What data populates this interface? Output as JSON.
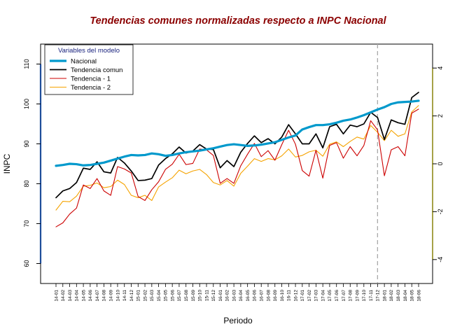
{
  "chart_data": {
    "type": "line",
    "title": "Tendencias comunes normalizadas respecto a INPC Nacional",
    "xlabel": "Periodo",
    "ylabel": "INPC",
    "ylim": [
      55,
      115
    ],
    "y_ticks": [
      60,
      70,
      80,
      90,
      100,
      110
    ],
    "y2lim": [
      -5,
      5
    ],
    "y2_ticks": [
      -4,
      -2,
      0,
      2,
      4
    ],
    "grid": false,
    "legend_title": "Variables del modelo",
    "legend_position": "top-left",
    "vline_category": "17-12",
    "categories": [
      "14-01",
      "14-02",
      "14-03",
      "14-04",
      "14-05",
      "14-06",
      "14-07",
      "14-08",
      "14-09",
      "14-10",
      "14-11",
      "14-12",
      "15-01",
      "15-02",
      "15-03",
      "15-04",
      "15-05",
      "15-06",
      "15-07",
      "15-08",
      "15-09",
      "15-10",
      "15-11",
      "15-12",
      "16-01",
      "16-02",
      "16-03",
      "16-04",
      "16-05",
      "16-06",
      "16-07",
      "16-08",
      "16-09",
      "16-10",
      "16-11",
      "16-12",
      "17-01",
      "17-02",
      "17-03",
      "17-04",
      "17-05",
      "17-06",
      "17-07",
      "17-08",
      "17-09",
      "17-10",
      "17-11",
      "17-12",
      "18-01",
      "18-02",
      "18-03",
      "18-04",
      "18-05",
      "18-06"
    ],
    "series": [
      {
        "name": "Nacional",
        "color": "#0099cc",
        "width": 3.2,
        "values": [
          84.5,
          84.7,
          85.0,
          84.9,
          84.6,
          84.7,
          85.0,
          85.3,
          85.8,
          86.3,
          86.8,
          87.2,
          87.1,
          87.2,
          87.6,
          87.4,
          87.0,
          87.2,
          87.6,
          87.9,
          88.1,
          88.3,
          88.6,
          88.9,
          89.3,
          89.7,
          89.9,
          89.7,
          89.5,
          89.6,
          89.8,
          90.1,
          90.4,
          91.0,
          91.6,
          92.1,
          93.6,
          94.2,
          94.7,
          94.7,
          94.9,
          95.3,
          95.8,
          96.1,
          96.6,
          97.2,
          97.9,
          98.6,
          99.2,
          100.0,
          100.4,
          100.5,
          100.6,
          100.8
        ]
      },
      {
        "name": "Tendencia comun",
        "color": "#000000",
        "width": 1.7,
        "values": [
          76.5,
          78.2,
          78.8,
          80.3,
          83.9,
          83.6,
          85.5,
          83.0,
          82.7,
          86.6,
          85.2,
          83.2,
          80.8,
          80.9,
          81.3,
          84.7,
          86.3,
          87.5,
          89.2,
          87.7,
          88.2,
          89.8,
          88.7,
          88.6,
          84.0,
          85.8,
          84.3,
          87.9,
          90.1,
          92.0,
          90.3,
          91.3,
          90.0,
          91.7,
          94.8,
          92.5,
          90.0,
          90.0,
          92.5,
          89.0,
          94.3,
          94.9,
          92.5,
          94.7,
          94.3,
          95.0,
          97.9,
          96.6,
          91.1,
          96.0,
          95.3,
          94.9,
          101.6,
          102.9
        ]
      },
      {
        "name": "Tendencia - 1",
        "color": "#cc0000",
        "width": 1.1,
        "values": [
          69.2,
          70.2,
          72.4,
          73.9,
          79.7,
          78.8,
          81.3,
          78.2,
          77.1,
          84.3,
          83.7,
          82.7,
          76.8,
          75.8,
          78.5,
          80.5,
          83.6,
          84.9,
          87.4,
          84.8,
          85.1,
          88.7,
          88.5,
          87.1,
          80.1,
          81.3,
          80.1,
          84.5,
          87.4,
          90.1,
          86.8,
          88.3,
          85.9,
          89.8,
          93.4,
          89.9,
          83.3,
          81.9,
          88.4,
          81.4,
          89.6,
          90.3,
          86.4,
          89.3,
          87.0,
          89.6,
          95.8,
          93.5,
          82.0,
          88.5,
          89.3,
          87.0,
          97.7,
          98.7
        ]
      },
      {
        "name": "Tendencia - 2",
        "color": "#f5a300",
        "width": 1.1,
        "values": [
          73.4,
          75.6,
          75.5,
          76.9,
          79.4,
          79.6,
          80.2,
          79.0,
          79.3,
          80.9,
          79.8,
          77.1,
          76.5,
          77.1,
          75.8,
          79.2,
          80.4,
          81.5,
          83.4,
          82.5,
          83.2,
          83.6,
          82.3,
          80.3,
          79.7,
          80.8,
          79.4,
          82.6,
          84.4,
          86.3,
          85.6,
          86.3,
          86.0,
          87.0,
          88.7,
          86.7,
          87.1,
          88.0,
          88.4,
          86.9,
          89.9,
          90.5,
          89.3,
          90.6,
          91.7,
          91.2,
          94.6,
          92.9,
          90.8,
          93.4,
          91.9,
          92.5,
          98.0,
          99.6
        ]
      }
    ]
  }
}
